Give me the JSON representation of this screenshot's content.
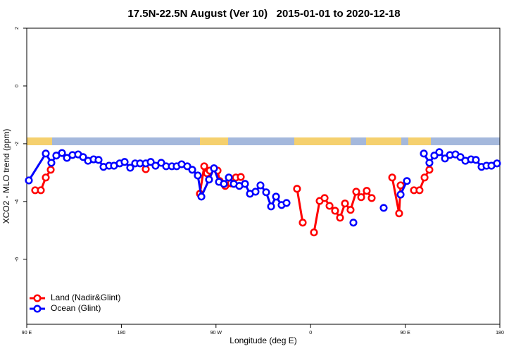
{
  "chart_data": {
    "type": "line",
    "title": "17.5N-22.5N August (Ver 10)   2015-01-01 to 2020-12-18",
    "xlabel": "Longitude (deg E)",
    "ylabel": "XCO2 - MLO trend (ppm)",
    "xlim": [
      90,
      540
    ],
    "xticks": [
      {
        "value": 90,
        "label": "90 E"
      },
      180,
      {
        "value": 270,
        "label": "90 W"
      },
      {
        "value": 360,
        "label": "0"
      },
      {
        "value": 450,
        "label": "90 E"
      },
      {
        "value": 540,
        "label": "180"
      }
    ],
    "ylim": [
      -8.25,
      2
    ],
    "yticks": [
      2,
      0,
      -2,
      -4,
      -6
    ],
    "legend": "bottom-left",
    "series": [
      {
        "name": "Land (Nadir&Glint)",
        "color": "#ff0000",
        "x": [
          98.0,
          103.4,
          108.1,
          112.8,
          null,
          203.2,
          null,
          254.7,
          258.8,
          261.4,
          264.1,
          271.5,
          273.5,
          278.8,
          284.2,
          288.9,
          293.6,
          null,
          347.1,
          352.5,
          null,
          363.2,
          368.6,
          373.3,
          378.0,
          383.3,
          388.0,
          392.7,
          398.0,
          403.4,
          408.1,
          413.4,
          418.1,
          null,
          437.6,
          444.2,
          445.6,
          null,
          458.3,
          463.6,
          468.4,
          473.0
        ],
        "values": [
          -3.61,
          -3.61,
          -3.17,
          -2.9,
          null,
          -2.88,
          null,
          -3.73,
          -2.78,
          -3.02,
          -2.93,
          -2.93,
          -3.29,
          -3.46,
          -3.37,
          -3.17,
          -3.15,
          null,
          -3.56,
          -4.73,
          null,
          -5.07,
          -3.98,
          -3.88,
          -4.15,
          -4.32,
          -4.56,
          -4.07,
          -4.29,
          -3.66,
          -3.85,
          -3.63,
          -3.88,
          null,
          -3.17,
          -4.41,
          -3.44,
          null,
          -3.61,
          -3.61,
          -3.17,
          -2.9
        ]
      },
      {
        "name": "Ocean (Glint)",
        "color": "#0000ff",
        "x": [
          92.0,
          108.1,
          113.4,
          118.1,
          123.5,
          128.2,
          133.5,
          138.9,
          143.6,
          148.3,
          153.6,
          158.3,
          163.0,
          168.3,
          173.0,
          178.4,
          183.1,
          188.4,
          193.1,
          197.8,
          203.2,
          207.9,
          212.5,
          217.9,
          222.6,
          228.0,
          232.6,
          237.3,
          242.7,
          247.4,
          252.7,
          256.1,
          263.4,
          268.1,
          272.8,
          277.5,
          282.2,
          286.9,
          292.2,
          297.6,
          302.3,
          307.6,
          312.3,
          317.7,
          322.4,
          327.1,
          332.4,
          337.1,
          null,
          400.7,
          null,
          429.5,
          null,
          445.6,
          451.6,
          null,
          467.7,
          473.0,
          477.7,
          482.4,
          487.8,
          492.5,
          497.8,
          502.5,
          507.2,
          512.6,
          517.2,
          522.6,
          527.3,
          532.0,
          537.3
        ],
        "values": [
          -3.27,
          -2.34,
          -2.66,
          -2.41,
          -2.32,
          -2.49,
          -2.39,
          -2.37,
          -2.46,
          -2.59,
          -2.54,
          -2.56,
          -2.8,
          -2.76,
          -2.76,
          -2.68,
          -2.63,
          -2.83,
          -2.68,
          -2.68,
          -2.68,
          -2.63,
          -2.76,
          -2.66,
          -2.78,
          -2.78,
          -2.78,
          -2.71,
          -2.78,
          -2.9,
          -3.1,
          -3.83,
          -3.24,
          -2.85,
          -3.32,
          -3.39,
          -3.17,
          -3.39,
          -3.46,
          -3.39,
          -3.73,
          -3.66,
          -3.44,
          -3.68,
          -4.17,
          -3.83,
          -4.12,
          -4.05,
          null,
          -4.73,
          null,
          -4.22,
          null,
          -3.76,
          -3.29,
          null,
          -2.34,
          -2.66,
          -2.41,
          -2.29,
          -2.51,
          -2.39,
          -2.37,
          -2.46,
          -2.59,
          -2.54,
          -2.56,
          -2.8,
          -2.76,
          -2.76,
          -2.68
        ]
      }
    ]
  }
}
